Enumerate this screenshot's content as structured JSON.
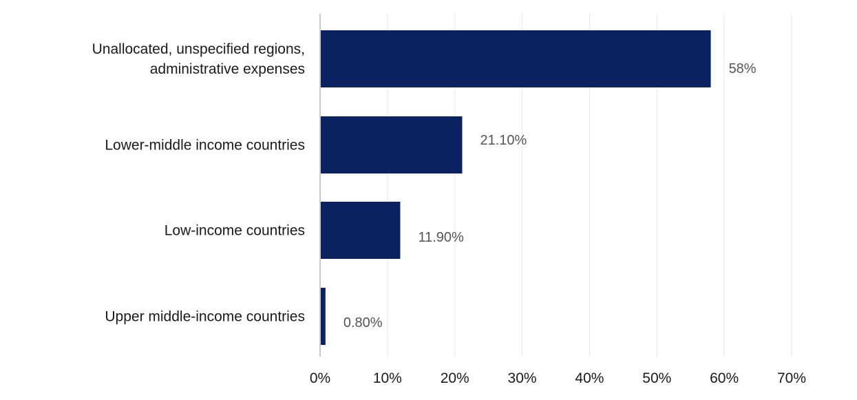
{
  "chart_data": {
    "type": "bar",
    "orientation": "horizontal",
    "categories": [
      [
        "Unallocated, unspecified regions,",
        "administrative expenses"
      ],
      [
        "Lower-middle income countries"
      ],
      [
        "Low-income countries"
      ],
      [
        "Upper middle-income countries"
      ]
    ],
    "values": [
      58,
      21.1,
      11.9,
      0.8
    ],
    "data_labels": [
      "58%",
      "21.10%",
      "11.90%",
      "0.80%"
    ],
    "xticks": [
      "0%",
      "10%",
      "20%",
      "30%",
      "40%",
      "50%",
      "60%",
      "70%"
    ],
    "xlim": [
      0,
      70
    ],
    "grid": true,
    "bar_color": "#0a2260"
  }
}
